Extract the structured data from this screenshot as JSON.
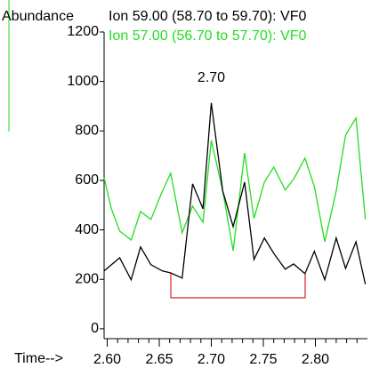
{
  "chart_data": {
    "type": "line",
    "y_label": "Abundance",
    "x_label": "Time-->",
    "peak_label": "2.70",
    "series": [
      {
        "name": "Ion  59.00 (58.70 to 59.70): VF0",
        "color": "#000000",
        "x": [
          2.597,
          2.612,
          2.623,
          2.632,
          2.642,
          2.653,
          2.661,
          2.672,
          2.682,
          2.692,
          2.7,
          2.711,
          2.721,
          2.732,
          2.741,
          2.751,
          2.76,
          2.771,
          2.779,
          2.79,
          2.799,
          2.809,
          2.82,
          2.829,
          2.839,
          2.848
        ],
        "values": [
          234,
          287,
          198,
          331,
          259,
          234,
          226,
          205,
          586,
          485,
          913,
          557,
          413,
          593,
          280,
          367,
          305,
          241,
          262,
          223,
          313,
          198,
          367,
          244,
          352,
          180
        ]
      },
      {
        "name": "Ion  57.00 (56.70 to 57.70): VF0",
        "color": "#22dd22",
        "x": [
          2.597,
          2.604,
          2.612,
          2.623,
          2.632,
          2.642,
          2.653,
          2.661,
          2.672,
          2.682,
          2.692,
          2.7,
          2.711,
          2.721,
          2.732,
          2.741,
          2.751,
          2.76,
          2.771,
          2.779,
          2.79,
          2.799,
          2.809,
          2.82,
          2.829,
          2.839,
          2.848
        ],
        "values": [
          611,
          485,
          395,
          359,
          474,
          442,
          557,
          629,
          388,
          496,
          431,
          762,
          557,
          316,
          711,
          446,
          593,
          654,
          561,
          604,
          690,
          575,
          352,
          557,
          783,
          852,
          442
        ]
      }
    ],
    "xlim": [
      2.597,
      2.85
    ],
    "xticks": [
      {
        "value": 2.6,
        "label": "2.60"
      },
      2.65,
      {
        "value": 2.7,
        "label": "2.70"
      },
      2.75,
      {
        "value": 2.8,
        "label": "2.80"
      }
    ],
    "xminorticks": [
      2.61,
      2.62,
      2.63,
      2.64,
      2.66,
      2.67,
      2.68,
      2.69,
      2.71,
      2.72,
      2.73,
      2.74,
      2.76,
      2.77,
      2.78,
      2.79,
      2.81,
      2.82,
      2.83,
      2.84
    ],
    "ylim": [
      -40,
      1200
    ],
    "yticks": [
      0,
      200,
      400,
      600,
      800,
      1000,
      1200
    ]
  }
}
